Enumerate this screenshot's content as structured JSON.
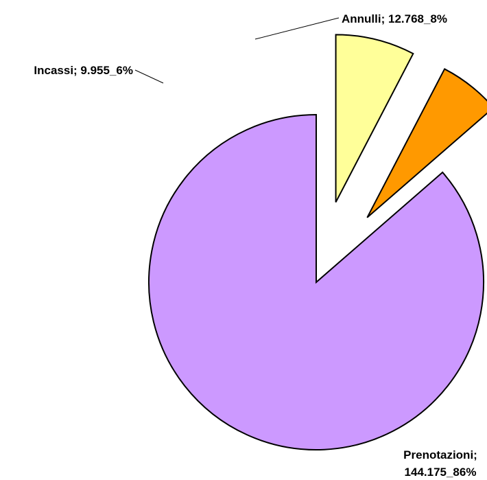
{
  "chart_data": {
    "type": "pie",
    "title": "",
    "slices": [
      {
        "name": "Prenotazioni",
        "value": 144175,
        "label_lines": [
          "Prenotazioni;",
          "144.175_86%"
        ],
        "color": "#cc99ff"
      },
      {
        "name": "Incassi",
        "value": 9955,
        "label_lines": [
          "Incassi; 9.955_6%"
        ],
        "color": "#ff9900"
      },
      {
        "name": "Annulli",
        "value": 12768,
        "label_lines": [
          "Annulli; 12.768_8%"
        ],
        "color": "#ffff99"
      }
    ],
    "legend": "none",
    "exploded": [
      "Incassi",
      "Annulli"
    ]
  }
}
